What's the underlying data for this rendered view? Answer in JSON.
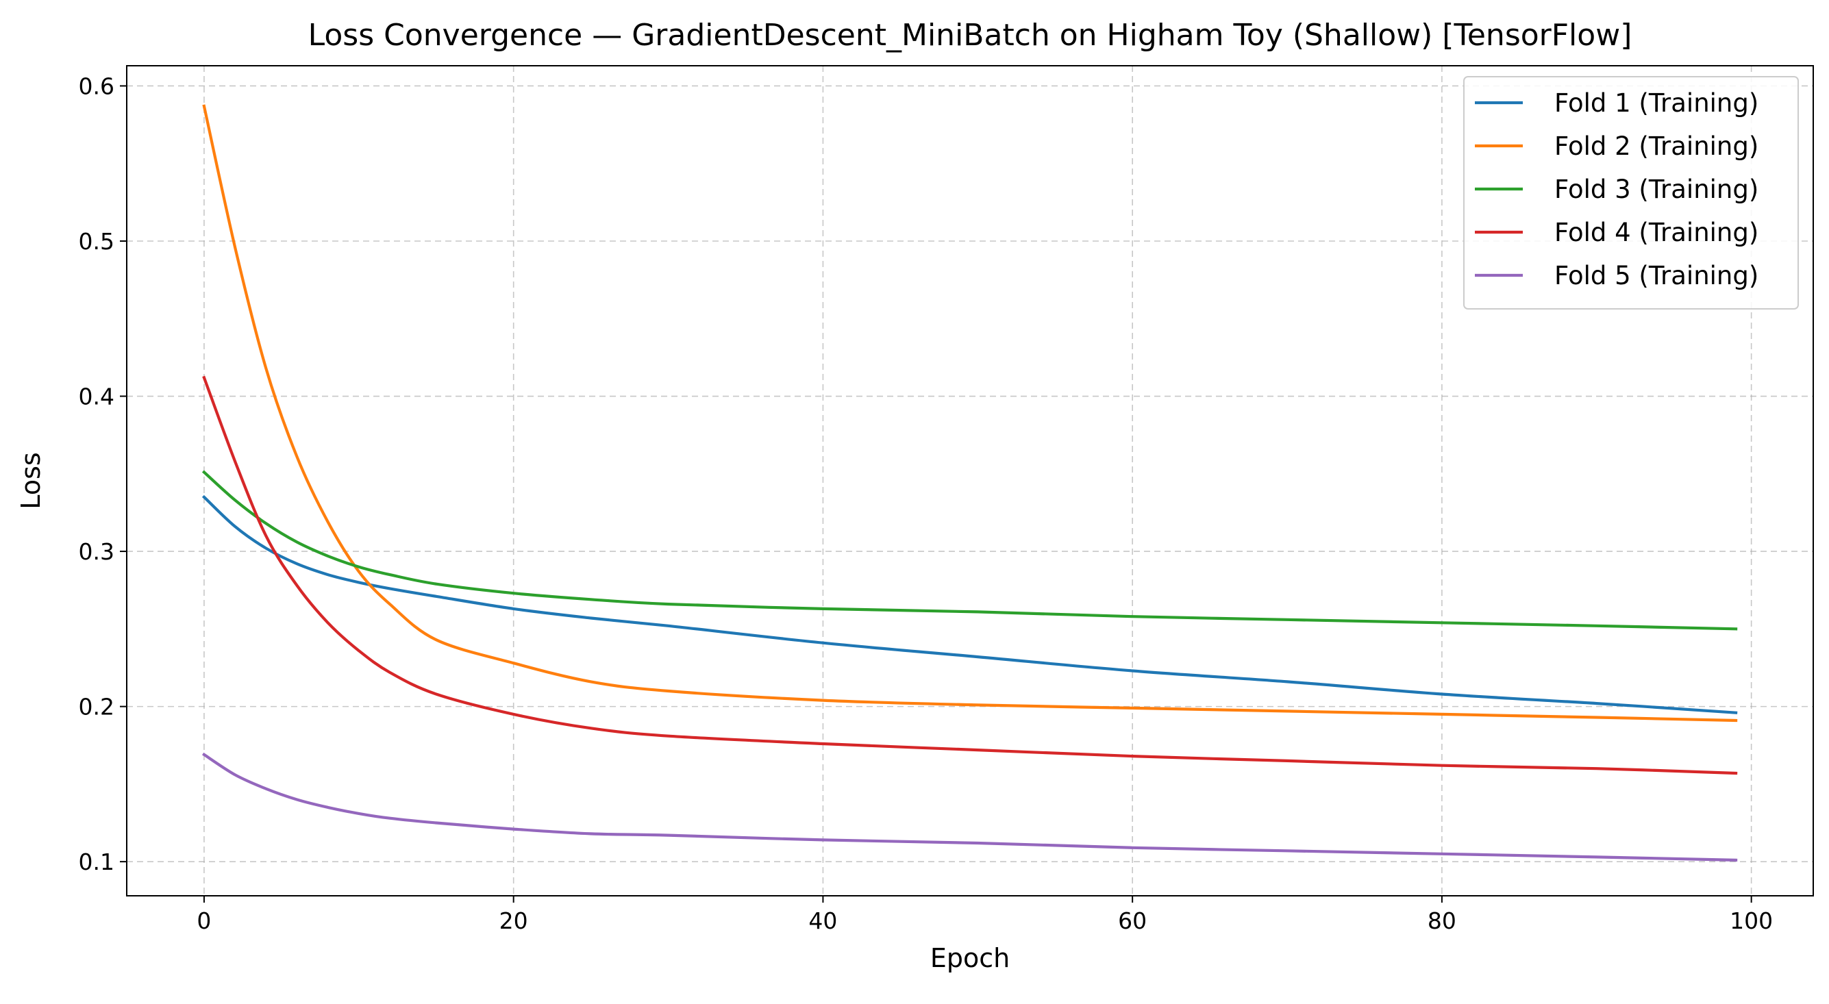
{
  "chart_data": {
    "type": "line",
    "title": "Loss Convergence — GradientDescent_MiniBatch on Higham Toy (Shallow) [TensorFlow]",
    "xlabel": "Epoch",
    "ylabel": "Loss",
    "xlim": [
      -5,
      104
    ],
    "ylim": [
      0.078,
      0.613
    ],
    "xticks": [
      0,
      20,
      40,
      60,
      80,
      100
    ],
    "xtick_labels": [
      "0",
      "20",
      "40",
      "60",
      "80",
      "100"
    ],
    "yticks": [
      0.1,
      0.2,
      0.3,
      0.4,
      0.5,
      0.6
    ],
    "ytick_labels": [
      "0.1",
      "0.2",
      "0.3",
      "0.4",
      "0.5",
      "0.6"
    ],
    "grid": true,
    "legend_position": "top-right",
    "x": [
      0,
      2,
      4,
      6,
      8,
      10,
      12,
      15,
      20,
      25,
      30,
      40,
      50,
      60,
      70,
      80,
      90,
      99
    ],
    "series": [
      {
        "name": "Fold 1 (Training)",
        "color": "#1f77b4",
        "values": [
          0.335,
          0.316,
          0.302,
          0.292,
          0.285,
          0.28,
          0.276,
          0.271,
          0.263,
          0.257,
          0.252,
          0.241,
          0.232,
          0.223,
          0.216,
          0.208,
          0.202,
          0.196
        ]
      },
      {
        "name": "Fold 2 (Training)",
        "color": "#ff7f0e",
        "values": [
          0.587,
          0.496,
          0.418,
          0.361,
          0.319,
          0.287,
          0.266,
          0.243,
          0.228,
          0.216,
          0.21,
          0.204,
          0.201,
          0.199,
          0.197,
          0.195,
          0.193,
          0.191
        ]
      },
      {
        "name": "Fold 3 (Training)",
        "color": "#2ca02c",
        "values": [
          0.351,
          0.333,
          0.318,
          0.306,
          0.297,
          0.29,
          0.285,
          0.279,
          0.273,
          0.269,
          0.266,
          0.263,
          0.261,
          0.258,
          0.256,
          0.254,
          0.252,
          0.25
        ]
      },
      {
        "name": "Fold 4 (Training)",
        "color": "#d62728",
        "values": [
          0.412,
          0.358,
          0.31,
          0.278,
          0.254,
          0.236,
          0.222,
          0.208,
          0.195,
          0.186,
          0.181,
          0.176,
          0.172,
          0.168,
          0.165,
          0.162,
          0.16,
          0.157
        ]
      },
      {
        "name": "Fold 5 (Training)",
        "color": "#9467bd",
        "values": [
          0.169,
          0.156,
          0.147,
          0.14,
          0.135,
          0.131,
          0.128,
          0.125,
          0.121,
          0.118,
          0.117,
          0.114,
          0.112,
          0.109,
          0.107,
          0.105,
          0.103,
          0.101
        ]
      }
    ]
  }
}
